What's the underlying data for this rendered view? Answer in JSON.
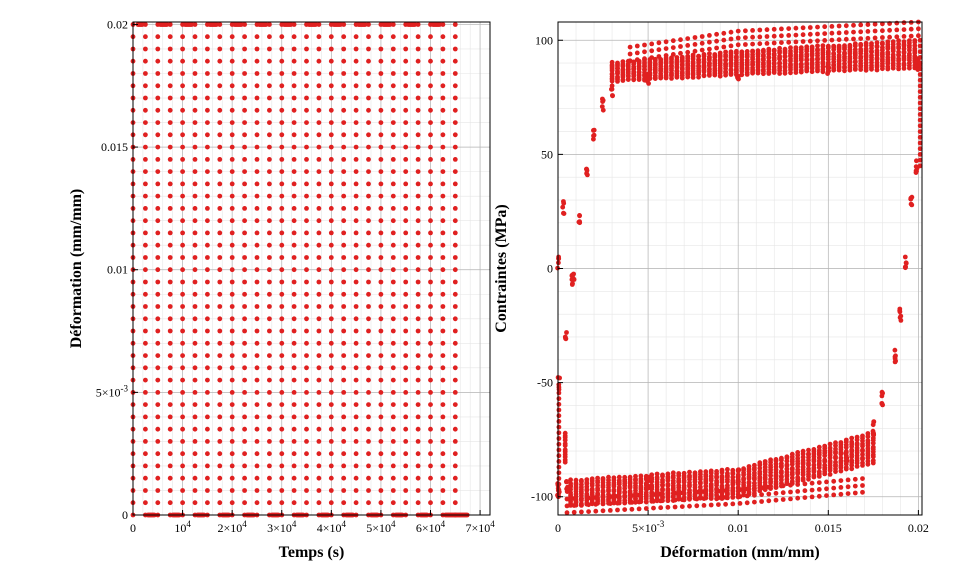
{
  "chart_data": [
    {
      "type": "scatter",
      "title": "",
      "xlabel": "Temps (s)",
      "ylabel": "Déformation (mm/mm)",
      "xlim": [
        0,
        72000
      ],
      "ylim": [
        0,
        0.0201
      ],
      "x_ticks": [
        {
          "value": 0,
          "label": "0"
        },
        {
          "value": 10000,
          "label": "10^4"
        },
        {
          "value": 20000,
          "label": "2×10^4"
        },
        {
          "value": 30000,
          "label": "3×10^4"
        },
        {
          "value": 40000,
          "label": "4×10^4"
        },
        {
          "value": 50000,
          "label": "5×10^4"
        },
        {
          "value": 60000,
          "label": "6×10^4"
        },
        {
          "value": 70000,
          "label": "7×10^4"
        }
      ],
      "y_ticks": [
        {
          "value": 0,
          "label": "0"
        },
        {
          "value": 0.005,
          "label": "5×10^-3"
        },
        {
          "value": 0.01,
          "label": "0.01"
        },
        {
          "value": 0.015,
          "label": "0.015"
        },
        {
          "value": 0.02,
          "label": "0.02"
        }
      ],
      "grid": true,
      "marker_color": "#e02020",
      "series": [
        {
          "strain_min": 0,
          "strain_max": 0.02,
          "ramp_times": [
            0,
            2500,
            5000,
            7500,
            10000,
            12500,
            15000,
            17500,
            20000,
            22500,
            25000,
            27500,
            30000,
            32500,
            35000,
            37500,
            40000,
            42500,
            45000,
            47500,
            50000,
            52500,
            55000,
            57500,
            60000,
            62500,
            65000
          ],
          "hold_top": [
            [
              1000,
              2000
            ],
            [
              5500,
              7000
            ],
            [
              10500,
              12000
            ],
            [
              15500,
              17000
            ],
            [
              20500,
              22000
            ],
            [
              25500,
              27000
            ],
            [
              30500,
              32000
            ],
            [
              35500,
              37000
            ],
            [
              40500,
              42000
            ],
            [
              45500,
              47000
            ],
            [
              50500,
              52000
            ],
            [
              55500,
              57000
            ],
            [
              60500,
              62000
            ]
          ],
          "hold_bottom": [
            [
              3000,
              4500
            ],
            [
              8000,
              9500
            ],
            [
              13000,
              14500
            ],
            [
              18000,
              19500
            ],
            [
              23000,
              24500
            ],
            [
              28000,
              29500
            ],
            [
              33000,
              34500
            ],
            [
              38000,
              39500
            ],
            [
              43000,
              44500
            ],
            [
              48000,
              49500
            ],
            [
              53000,
              54500
            ],
            [
              58000,
              59500
            ],
            [
              63000,
              67500
            ]
          ]
        }
      ]
    },
    {
      "type": "scatter",
      "title": "",
      "xlabel": "Déformation (mm/mm)",
      "ylabel": "Contraintes (MPa)",
      "xlim": [
        0,
        0.0202
      ],
      "ylim": [
        -108,
        108
      ],
      "x_ticks": [
        {
          "value": 0,
          "label": "0"
        },
        {
          "value": 0.005,
          "label": "5×10^-3"
        },
        {
          "value": 0.01,
          "label": "0.01"
        },
        {
          "value": 0.015,
          "label": "0.015"
        },
        {
          "value": 0.02,
          "label": "0.02"
        }
      ],
      "y_ticks": [
        {
          "value": -100,
          "label": "-100"
        },
        {
          "value": -50,
          "label": "-50"
        },
        {
          "value": 0,
          "label": "0"
        },
        {
          "value": 50,
          "label": "50"
        },
        {
          "value": 100,
          "label": "100"
        }
      ],
      "grid": true,
      "marker_color": "#e02020",
      "series": [
        {
          "loading_branch": [
            [
              0,
              3
            ],
            [
              0.0003,
              27
            ],
            [
              0.0008,
              -5
            ],
            [
              0.0012,
              22
            ],
            [
              0.0016,
              43
            ],
            [
              0.002,
              58
            ],
            [
              0.0025,
              72
            ],
            [
              0.003,
              78
            ],
            [
              0.005,
              83
            ],
            [
              0.01,
              86
            ],
            [
              0.015,
              88
            ],
            [
              0.02,
              90
            ]
          ],
          "upper_plateau_bands": [
            [
              0.003,
              82,
              90
            ],
            [
              0.01,
              85,
              95
            ],
            [
              0.02,
              88,
              100
            ]
          ],
          "upper_outer_envelope": [
            [
              0.004,
              97
            ],
            [
              0.01,
              104
            ],
            [
              0.02,
              108
            ]
          ],
          "unloading_branch": [
            [
              0.02,
              90
            ],
            [
              0.0199,
              45
            ],
            [
              0.0196,
              29
            ],
            [
              0.0193,
              3
            ],
            [
              0.019,
              -20
            ],
            [
              0.0187,
              -38
            ],
            [
              0.018,
              -57
            ],
            [
              0.0175,
              -70
            ],
            [
              0.016,
              -84
            ],
            [
              0.01,
              -91
            ],
            [
              0.005,
              -94
            ],
            [
              0.0005,
              -95
            ],
            [
              0,
              -97
            ]
          ],
          "lower_plateau_bands": [
            [
              0.0005,
              -93,
              -104
            ],
            [
              0.01,
              -88,
              -100
            ],
            [
              0.0175,
              -72,
              -85
            ]
          ],
          "lower_outer_envelope": [
            [
              0.0005,
              -107
            ],
            [
              0.01,
              -103
            ],
            [
              0.017,
              -98
            ]
          ],
          "reload_branch": [
            [
              0,
              -97
            ],
            [
              0,
              -50
            ],
            [
              0.0004,
              -30
            ],
            [
              0.0008,
              -5
            ]
          ]
        }
      ]
    }
  ]
}
